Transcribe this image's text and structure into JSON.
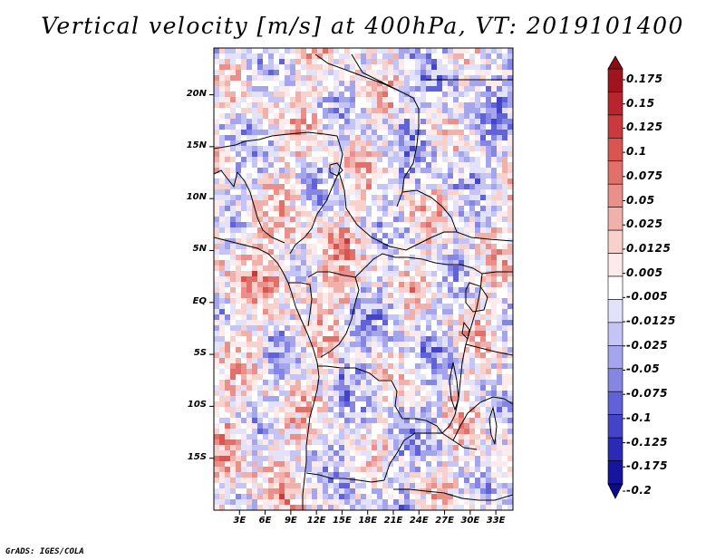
{
  "title": "Vertical velocity [m/s] at 400hPa, VT: 2019101400",
  "credit": "GrADS: IGES/COLA",
  "map": {
    "lat_labels": [
      "20N",
      "15N",
      "10N",
      "5N",
      "EQ",
      "5S",
      "10S",
      "15S"
    ],
    "lon_labels": [
      "3E",
      "6E",
      "9E",
      "12E",
      "15E",
      "18E",
      "21E",
      "24E",
      "27E",
      "30E",
      "33E"
    ],
    "lat_range": [
      -20,
      24.5
    ],
    "lon_range": [
      0,
      35
    ]
  },
  "colorbar": {
    "labels": [
      "0.175",
      "0.15",
      "0.125",
      "0.1",
      "0.075",
      "0.05",
      "0.025",
      "0.0125",
      "0.005",
      "-0.005",
      "-0.0125",
      "-0.025",
      "-0.05",
      "-0.075",
      "-0.1",
      "-0.125",
      "-0.175",
      "-0.2"
    ],
    "colors": [
      "#a0141e",
      "#b8262d",
      "#c93a3d",
      "#d85550",
      "#e2706a",
      "#ea8f8a",
      "#f2b0ab",
      "#f8d0cc",
      "#fcebea",
      "#ffffff",
      "#e2e2fb",
      "#c4c4f6",
      "#a5a5ee",
      "#8585e4",
      "#6262d8",
      "#4444c8",
      "#2a2ab4",
      "#15159e"
    ],
    "top_arrow_color": "#8c0a14",
    "bottom_arrow_color": "#0a0a8a"
  }
}
